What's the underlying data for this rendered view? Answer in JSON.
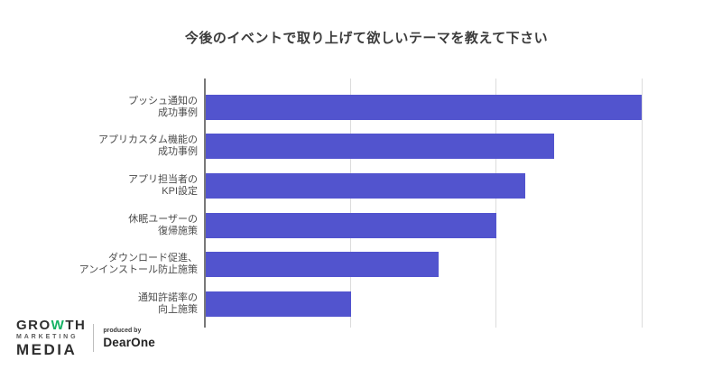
{
  "chart_data": {
    "type": "bar",
    "orientation": "horizontal",
    "title": "今後のイベントで取り上げて欲しいテーマを教えて下さい",
    "categories": [
      "プッシュ通知の成功事例",
      "アプリカスタム機能の成功事例",
      "アプリ担当者のKPI設定",
      "休眠ユーザーの復帰施策",
      "ダウンロード促進、アンインストール防止施策",
      "通知許諾率の向上施策"
    ],
    "category_lines": [
      [
        "プッシュ通知の",
        "成功事例"
      ],
      [
        "アプリカスタム機能の",
        "成功事例"
      ],
      [
        "アプリ担当者の",
        "KPI設定"
      ],
      [
        "休眠ユーザーの",
        "復帰施策"
      ],
      [
        "ダウンロード促進、",
        "アンインストール防止施策"
      ],
      [
        "通知許諾率の",
        "向上施策"
      ]
    ],
    "values": [
      15,
      12,
      11,
      10,
      8,
      5
    ],
    "value_note": "values estimated from unlabeled gridlines; gridline interval = 5",
    "xlabel": "",
    "ylabel": "",
    "xlim": [
      0,
      15
    ],
    "gridlines_x": [
      5,
      10,
      15
    ],
    "grid": "vertical gridlines only, no numeric tick labels",
    "legend": "none",
    "bar_color": "#5254CE"
  },
  "logo": {
    "growth_pre": "GRO",
    "growth_w": "W",
    "growth_post": "TH",
    "marketing": "MARKETING",
    "media": "MEDIA",
    "produced_by": "produced by",
    "dearone": "DearOne"
  },
  "colors": {
    "bar": "#5254CE",
    "axis": "#797979",
    "gridline": "#dcdcdc",
    "title_text": "#3c3c3c",
    "label_text": "#4b4b4b",
    "logo_green": "#14b264",
    "logo_dark": "#2f2f2f"
  }
}
